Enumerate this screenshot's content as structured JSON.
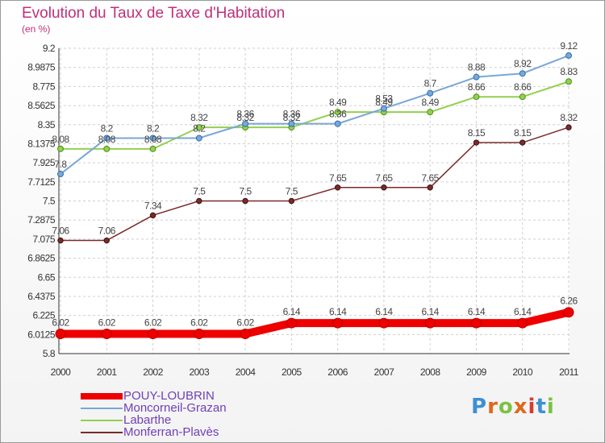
{
  "chart_data": {
    "type": "line",
    "title": "Evolution du Taux de Taxe d'Habitation",
    "subtitle": "(en %)",
    "x": [
      "2000",
      "2001",
      "2002",
      "2003",
      "2004",
      "2005",
      "2006",
      "2007",
      "2008",
      "2009",
      "2010",
      "2011"
    ],
    "yticks": [
      "5.8",
      "6.0125",
      "6.225",
      "6.4375",
      "6.65",
      "6.8625",
      "7.075",
      "7.2875",
      "7.5",
      "7.7125",
      "7.925",
      "8.1375",
      "8.35",
      "8.5625",
      "8.775",
      "8.9875",
      "9.2"
    ],
    "ylim": [
      5.8,
      9.2
    ],
    "grid": true,
    "legend_position": "bottom-left",
    "series": [
      {
        "name": "POUY-LOUBRIN",
        "color": "#ee0000",
        "values": [
          6.02,
          6.02,
          6.02,
          6.02,
          6.02,
          6.14,
          6.14,
          6.14,
          6.14,
          6.14,
          6.14,
          6.26
        ],
        "labels": [
          "6.02",
          "6.02",
          "6.02",
          "6.02",
          "6.02",
          "6.14",
          "6.14",
          "6.14",
          "6.14",
          "6.14",
          "6.14",
          "6.26"
        ]
      },
      {
        "name": "Moncorneil-Grazan",
        "color": "#7aa7d6",
        "values": [
          7.8,
          8.2,
          8.2,
          8.2,
          8.36,
          8.36,
          8.36,
          8.53,
          8.7,
          8.88,
          8.92,
          9.12
        ],
        "labels": [
          "7.8",
          "8.2",
          "8.2",
          "8.2",
          "8.36",
          "8.36",
          "8.36",
          "8.53",
          "8.7",
          "8.88",
          "8.92",
          "9.12"
        ]
      },
      {
        "name": "Labarthe",
        "color": "#92d04f",
        "values": [
          8.08,
          8.08,
          8.08,
          8.32,
          8.32,
          8.32,
          8.49,
          8.49,
          8.49,
          8.66,
          8.66,
          8.83
        ],
        "labels": [
          "8.08",
          "8.08",
          "8.08",
          "8.32",
          "8.32",
          "8.32",
          "8.49",
          "8.49",
          "8.49",
          "8.66",
          "8.66",
          "8.83"
        ]
      },
      {
        "name": "Monferran-Plavès",
        "color": "#7b2a2a",
        "values": [
          7.06,
          7.06,
          7.34,
          7.5,
          7.5,
          7.5,
          7.65,
          7.65,
          7.65,
          8.15,
          8.15,
          8.32
        ],
        "labels": [
          "7.06",
          "7.06",
          "7.34",
          "7.5",
          "7.5",
          "7.5",
          "7.65",
          "7.65",
          "7.65",
          "8.15",
          "8.15",
          "8.32"
        ]
      }
    ]
  },
  "logo": {
    "text": "Proxiti",
    "colors": [
      "#3d8fd6",
      "#e0671b",
      "#7cc242",
      "#e0671b",
      "#d93a2f",
      "#3d8fd6",
      "#7cc242"
    ]
  }
}
